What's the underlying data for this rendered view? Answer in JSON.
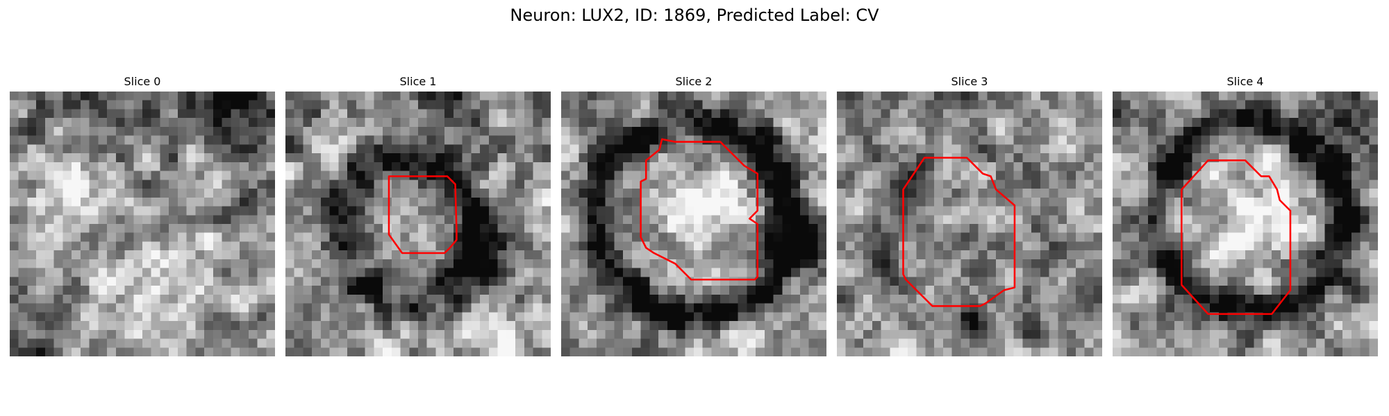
{
  "figure": {
    "title": "Neuron: LUX2, ID: 1869, Predicted Label: CV"
  },
  "colors": {
    "contour": "#ff0000"
  },
  "slices": [
    {
      "label": "Slice 0",
      "seed": 11,
      "has_contour": false,
      "base": 0.55,
      "ring": 0.0,
      "blobs": [
        [
          0.85,
          0.05,
          0.18,
          -0.45
        ],
        [
          0.35,
          0.05,
          0.22,
          -0.2
        ],
        [
          0.05,
          0.85,
          0.25,
          -0.15
        ],
        [
          0.25,
          0.35,
          0.18,
          0.25
        ],
        [
          0.45,
          0.8,
          0.18,
          0.22
        ],
        [
          0.75,
          0.75,
          0.15,
          0.18
        ]
      ]
    },
    {
      "label": "Slice 1",
      "seed": 23,
      "has_contour": true,
      "base": 0.62,
      "ring": 0.45,
      "ring_cx": 0.45,
      "ring_cy": 0.52,
      "ring_r": 0.26,
      "ring_w": 0.08,
      "blobs": [
        [
          0.75,
          0.65,
          0.12,
          -0.45
        ],
        [
          0.6,
          0.05,
          0.18,
          -0.3
        ],
        [
          0.05,
          0.05,
          0.12,
          -0.25
        ],
        [
          0.45,
          0.52,
          0.12,
          -0.1
        ]
      ],
      "contour": [
        [
          0.39,
          0.32
        ],
        [
          0.42,
          0.32
        ],
        [
          0.46,
          0.32
        ],
        [
          0.5,
          0.32
        ],
        [
          0.55,
          0.32
        ],
        [
          0.61,
          0.32
        ],
        [
          0.64,
          0.35
        ],
        [
          0.645,
          0.52
        ],
        [
          0.645,
          0.56
        ],
        [
          0.62,
          0.59
        ],
        [
          0.6,
          0.61
        ],
        [
          0.54,
          0.61
        ],
        [
          0.44,
          0.61
        ],
        [
          0.39,
          0.54
        ],
        [
          0.39,
          0.37
        ]
      ]
    },
    {
      "label": "Slice 2",
      "seed": 37,
      "has_contour": true,
      "base": 0.6,
      "ring": 0.6,
      "ring_cx": 0.5,
      "ring_cy": 0.48,
      "ring_r": 0.36,
      "ring_w": 0.08,
      "blobs": [
        [
          0.9,
          0.6,
          0.1,
          -0.4
        ],
        [
          0.5,
          0.45,
          0.2,
          0.25
        ]
      ],
      "contour": [
        [
          0.38,
          0.18
        ],
        [
          0.43,
          0.19
        ],
        [
          0.6,
          0.19
        ],
        [
          0.64,
          0.23
        ],
        [
          0.69,
          0.28
        ],
        [
          0.74,
          0.31
        ],
        [
          0.74,
          0.45
        ],
        [
          0.71,
          0.48
        ],
        [
          0.74,
          0.5
        ],
        [
          0.74,
          0.7
        ],
        [
          0.73,
          0.71
        ],
        [
          0.49,
          0.71
        ],
        [
          0.43,
          0.65
        ],
        [
          0.35,
          0.61
        ],
        [
          0.32,
          0.59
        ],
        [
          0.3,
          0.55
        ],
        [
          0.3,
          0.34
        ],
        [
          0.32,
          0.33
        ],
        [
          0.32,
          0.26
        ],
        [
          0.37,
          0.22
        ]
      ]
    },
    {
      "label": "Slice 3",
      "seed": 53,
      "has_contour": true,
      "base": 0.58,
      "ring": 0.15,
      "ring_cx": 0.5,
      "ring_cy": 0.55,
      "ring_r": 0.35,
      "ring_w": 0.06,
      "blobs": [
        [
          0.5,
          0.88,
          0.06,
          -0.4
        ],
        [
          0.25,
          0.4,
          0.07,
          -0.25
        ]
      ],
      "contour": [
        [
          0.33,
          0.25
        ],
        [
          0.37,
          0.25
        ],
        [
          0.49,
          0.25
        ],
        [
          0.55,
          0.31
        ],
        [
          0.58,
          0.32
        ],
        [
          0.6,
          0.37
        ],
        [
          0.67,
          0.43
        ],
        [
          0.67,
          0.74
        ],
        [
          0.63,
          0.75
        ],
        [
          0.56,
          0.8
        ],
        [
          0.54,
          0.81
        ],
        [
          0.36,
          0.81
        ],
        [
          0.26,
          0.71
        ],
        [
          0.25,
          0.69
        ],
        [
          0.25,
          0.37
        ]
      ]
    },
    {
      "label": "Slice 4",
      "seed": 71,
      "has_contour": true,
      "base": 0.6,
      "ring": 0.6,
      "ring_cx": 0.52,
      "ring_cy": 0.47,
      "ring_r": 0.35,
      "ring_w": 0.07,
      "blobs": [
        [
          0.9,
          0.05,
          0.14,
          -0.45
        ],
        [
          0.52,
          0.45,
          0.2,
          0.3
        ]
      ],
      "contour": [
        [
          0.36,
          0.26
        ],
        [
          0.37,
          0.26
        ],
        [
          0.5,
          0.26
        ],
        [
          0.56,
          0.32
        ],
        [
          0.59,
          0.32
        ],
        [
          0.62,
          0.37
        ],
        [
          0.63,
          0.41
        ],
        [
          0.67,
          0.45
        ],
        [
          0.67,
          0.75
        ],
        [
          0.6,
          0.84
        ],
        [
          0.36,
          0.84
        ],
        [
          0.26,
          0.73
        ],
        [
          0.26,
          0.37
        ]
      ]
    }
  ]
}
